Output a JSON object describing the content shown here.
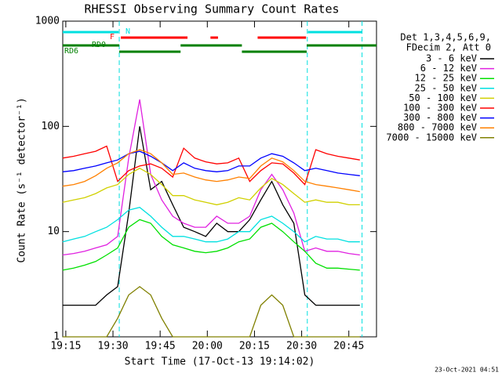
{
  "chart_data": {
    "type": "line",
    "title": "RHESSI Observing Summary Count Rates",
    "xlabel": "Start Time (17-Oct-13 19:14:02)",
    "ylabel": "Count Rate (s⁻¹ detector⁻¹)",
    "footer": "23-Oct-2021 04:51",
    "legend": "right",
    "legend_header": [
      "Det 1,3,4,5,6,9,",
      "FDecim 2, Att 0"
    ],
    "log_y": true,
    "xlim": [
      14.03,
      113.8
    ],
    "xticks": [
      {
        "value": 15,
        "label": "19:15"
      },
      {
        "value": 30,
        "label": "19:30"
      },
      {
        "value": 45,
        "label": "19:45"
      },
      {
        "value": 60,
        "label": "20:00"
      },
      {
        "value": 75,
        "label": "20:15"
      },
      {
        "value": 90,
        "label": "20:30"
      },
      {
        "value": 105,
        "label": "20:45"
      }
    ],
    "ylim": [
      1,
      1000
    ],
    "yticks": [
      1,
      10,
      100,
      1000
    ],
    "night_lines": [
      32,
      91.8,
      109.2
    ],
    "night_color": "#00e0e0",
    "flags": [
      {
        "label": "N",
        "color": "#00e0e0",
        "segments": [
          [
            14.03,
            31.8
          ],
          [
            92,
            109.2
          ]
        ]
      },
      {
        "label": "F",
        "color": "#ff0000",
        "segments": [
          [
            32.5,
            53.7
          ],
          [
            61,
            63.4
          ],
          [
            76,
            91.4
          ]
        ]
      },
      {
        "label": "RD0",
        "color": "#008000",
        "segments": [
          [
            14.03,
            32
          ],
          [
            51.5,
            71
          ],
          [
            91.6,
            113.8
          ]
        ]
      },
      {
        "label": "RD6",
        "color": "#008000",
        "segments": [
          [
            32,
            51.5
          ],
          [
            71,
            91.6
          ]
        ]
      }
    ],
    "x": [
      14,
      17.5,
      21,
      24.5,
      28,
      31.5,
      35,
      38.5,
      42,
      45.5,
      49,
      52.5,
      56,
      59.5,
      63,
      66.5,
      70,
      73.5,
      77,
      80.5,
      84,
      87.5,
      91,
      94.5,
      98,
      101.5,
      105,
      108.5
    ],
    "series": [
      {
        "name": "3 - 6 keV",
        "color": "#000000",
        "values": [
          2,
          2,
          2,
          2,
          2.5,
          3,
          15,
          100,
          25,
          30,
          18,
          11,
          10,
          9,
          12,
          10,
          10,
          13,
          20,
          30,
          18,
          12,
          2.5,
          2,
          2,
          2,
          2,
          2
        ]
      },
      {
        "name": "6 - 12 keV",
        "color": "#e020e0",
        "values": [
          6,
          6.2,
          6.5,
          7,
          7.5,
          9,
          50,
          180,
          35,
          20,
          14,
          12,
          11,
          11,
          14,
          12,
          12,
          14,
          25,
          35,
          25,
          15,
          6.5,
          7,
          6.5,
          6.5,
          6.2,
          6
        ]
      },
      {
        "name": "12 - 25 keV",
        "color": "#00e000",
        "values": [
          4.3,
          4.5,
          4.8,
          5.2,
          6,
          7,
          11,
          13,
          12,
          9,
          7.5,
          7,
          6.5,
          6.3,
          6.5,
          7,
          8,
          8.5,
          11,
          12,
          10,
          8,
          6.5,
          5,
          4.5,
          4.5,
          4.4,
          4.3
        ]
      },
      {
        "name": "25 - 50 keV",
        "color": "#00e0e0",
        "values": [
          8,
          8.5,
          9,
          10,
          11,
          13,
          16,
          17,
          14,
          11,
          9,
          9,
          8.5,
          8,
          8,
          8.5,
          10,
          10,
          13,
          14,
          12,
          10,
          8,
          9,
          8.5,
          8.5,
          8,
          8
        ]
      },
      {
        "name": "50 - 100 keV",
        "color": "#d0d000",
        "values": [
          19,
          20,
          21,
          23,
          26,
          28,
          35,
          40,
          35,
          28,
          22,
          22,
          20,
          19,
          18,
          19,
          21,
          20,
          26,
          32,
          28,
          23,
          19,
          20,
          19,
          19,
          18,
          18
        ]
      },
      {
        "name": "100 - 300 keV",
        "color": "#ff0000",
        "values": [
          50,
          52,
          55,
          58,
          65,
          30,
          38,
          42,
          44,
          40,
          33,
          62,
          50,
          46,
          44,
          45,
          50,
          30,
          38,
          45,
          44,
          36,
          28,
          60,
          55,
          52,
          50,
          48
        ]
      },
      {
        "name": "300 - 800 keV",
        "color": "#0000ff",
        "values": [
          37,
          38,
          40,
          42,
          45,
          48,
          55,
          58,
          52,
          45,
          38,
          45,
          40,
          38,
          37,
          38,
          42,
          42,
          50,
          55,
          52,
          45,
          38,
          40,
          38,
          36,
          35,
          34
        ]
      },
      {
        "name": "800 - 7000 keV",
        "color": "#ff8000",
        "values": [
          27,
          28,
          30,
          34,
          40,
          45,
          55,
          60,
          55,
          45,
          35,
          36,
          33,
          31,
          30,
          31,
          33,
          32,
          42,
          50,
          46,
          38,
          30,
          28,
          27,
          26,
          25,
          24
        ]
      },
      {
        "name": "7000 - 15000 keV",
        "color": "#808000",
        "values": [
          1,
          1,
          1,
          1,
          1,
          1.5,
          2.5,
          3,
          2.5,
          1.5,
          1,
          1,
          1,
          1,
          1,
          1,
          1,
          1,
          2,
          2.5,
          2,
          1,
          1,
          1,
          1,
          1,
          1,
          1
        ]
      }
    ]
  }
}
